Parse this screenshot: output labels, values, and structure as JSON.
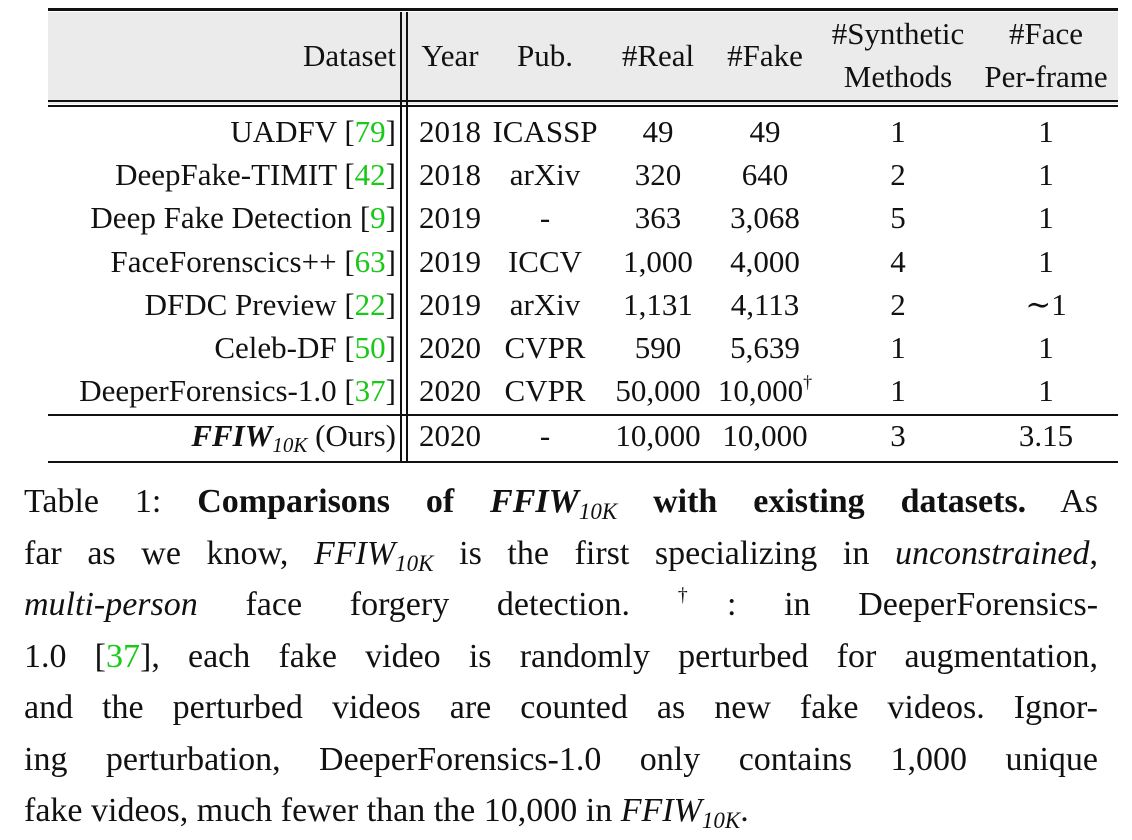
{
  "table": {
    "headers": {
      "dataset": "Dataset",
      "year": "Year",
      "pub": "Pub.",
      "real": "#Real",
      "fake": "#Fake",
      "synthetic_line1": "#Synthetic",
      "synthetic_line2": "Methods",
      "face_line1": "#Face",
      "face_line2": "Per-frame"
    },
    "rows": [
      {
        "dataset": "UADFV",
        "cite": "79",
        "year": "2018",
        "pub": "ICASSP",
        "real": "49",
        "fake": "49",
        "methods": "1",
        "faces": "1"
      },
      {
        "dataset": "DeepFake-TIMIT",
        "cite": "42",
        "year": "2018",
        "pub": "arXiv",
        "real": "320",
        "fake": "640",
        "methods": "2",
        "faces": "1"
      },
      {
        "dataset": "Deep Fake Detection",
        "cite": "9",
        "year": "2019",
        "pub": "-",
        "real": "363",
        "fake": "3,068",
        "methods": "5",
        "faces": "1"
      },
      {
        "dataset": "FaceForenscics++",
        "cite": "63",
        "year": "2019",
        "pub": "ICCV",
        "real": "1,000",
        "fake": "4,000",
        "methods": "4",
        "faces": "1"
      },
      {
        "dataset": "DFDC Preview",
        "cite": "22",
        "year": "2019",
        "pub": "arXiv",
        "real": "1,131",
        "fake": "4,113",
        "methods": "2",
        "faces": "∼1"
      },
      {
        "dataset": "Celeb-DF",
        "cite": "50",
        "year": "2020",
        "pub": "CVPR",
        "real": "590",
        "fake": "5,639",
        "methods": "1",
        "faces": "1"
      },
      {
        "dataset": "DeeperForensics-1.0",
        "cite": "37",
        "year": "2020",
        "pub": "CVPR",
        "real": "50,000",
        "fake": "10,000",
        "fake_mark": "†",
        "methods": "1",
        "faces": "1"
      }
    ],
    "ours": {
      "name": "FFIW",
      "subscript": "10K",
      "suffix": "(Ours)",
      "year": "2020",
      "pub": "-",
      "real": "10,000",
      "fake": "10,000",
      "methods": "3",
      "faces": "3.15"
    }
  },
  "caption": {
    "label": "Table 1:",
    "bold_lead": "Comparisons of",
    "bold_name": "FFIW",
    "bold_sub": "10K",
    "bold_tail": "with existing datasets.",
    "l1_tail": "As",
    "l2_a": "far as we know,",
    "l2_name": "FFIW",
    "l2_sub": "10K",
    "l2_b": "is the first specializing in",
    "l2_ital": "unconstrained",
    "l2_comma": ",",
    "l3_ital": "multi-person",
    "l3_b": "face forgery detection.",
    "l3_dagger": "†",
    "l3_c": ": in DeeperForensics-",
    "l4_a": "1.0 [",
    "l4_cite": "37",
    "l4_b": "], each fake video is randomly perturbed for augmentation,",
    "l5": "and the perturbed videos are counted as new fake videos. Ignor-",
    "l6": "ing perturbation, DeeperForensics-1.0 only contains 1,000 unique",
    "l7_a": "fake videos, much fewer than the 10,000 in",
    "l7_name": "FFIW",
    "l7_sub": "10K",
    "l7_end": "."
  }
}
